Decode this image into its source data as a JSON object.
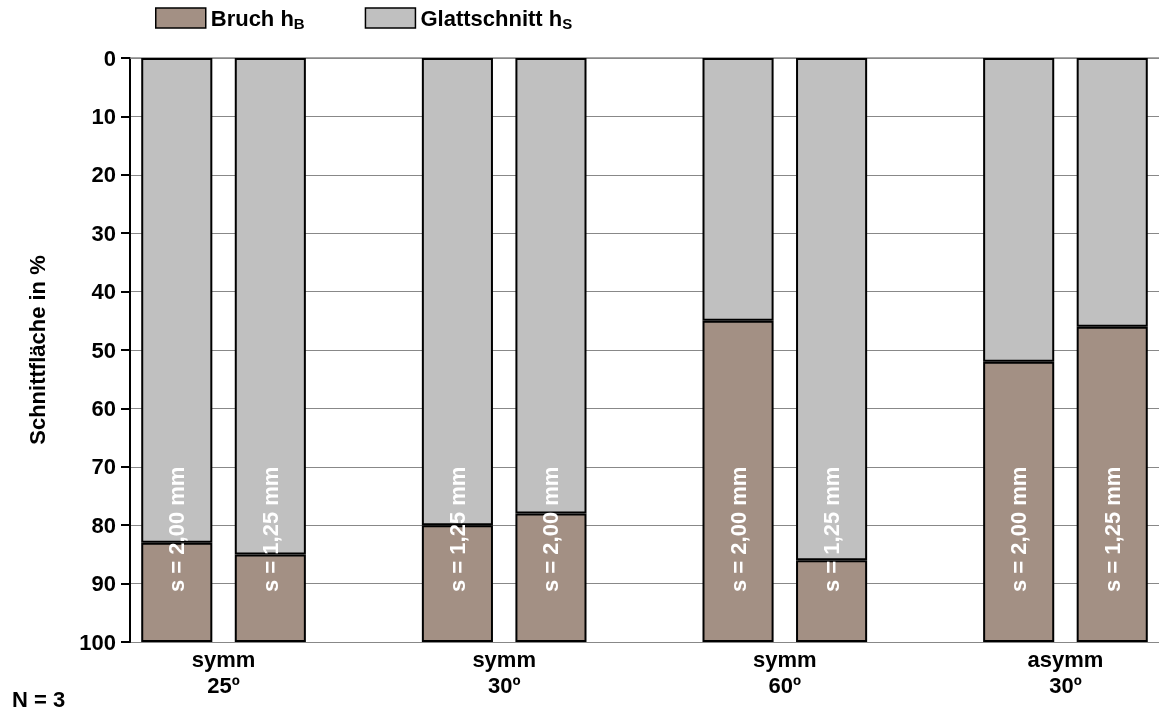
{
  "chart_data": {
    "type": "bar",
    "stacked": true,
    "ylabel": "Schnittfläche in %",
    "categories": [
      "s = 2,00 mm",
      "s = 1,25 mm",
      null,
      "s = 1,25 mm",
      "s = 2,00 mm",
      null,
      "s = 2,00 mm",
      "s = 1,25 mm",
      null,
      "s = 2,00 mm",
      "s = 1,25 mm"
    ],
    "series": [
      {
        "name": "Bruch h$_{B}$",
        "color": "#a39084",
        "values": [
          17,
          15,
          null,
          20,
          22,
          null,
          55,
          14,
          null,
          48,
          54
        ]
      },
      {
        "name": "Glattschnitt h$_{S}$",
        "color": "#c0c0c0",
        "values": [
          83,
          85,
          null,
          80,
          78,
          null,
          45,
          86,
          null,
          52,
          46
        ]
      }
    ],
    "ylim": [
      100,
      0
    ],
    "yticks": [
      0,
      10,
      20,
      30,
      40,
      50,
      60,
      70,
      80,
      90,
      100
    ],
    "grid": "y",
    "legend": "top left",
    "annotations": [
      "symm\n25º",
      "symm\n30º",
      "symm\n60º",
      "asymm\n30º",
      "N = 3"
    ]
  }
}
